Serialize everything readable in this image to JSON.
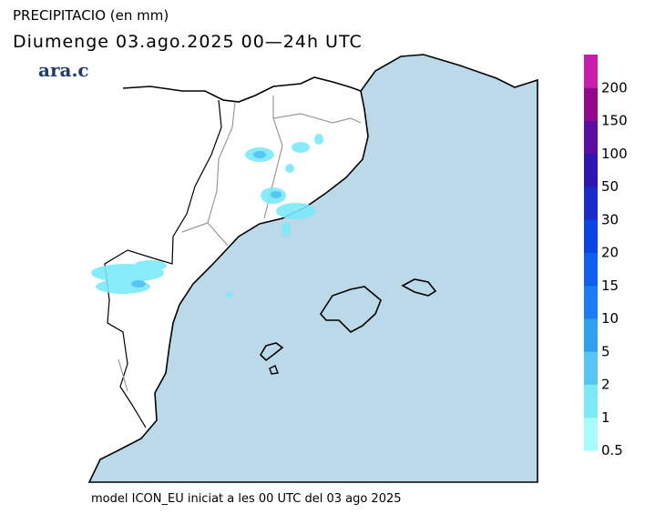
{
  "header": {
    "title": "PRECIPITACIO (en mm)",
    "subtitle": "Diumenge  03.ago.2025  00—24h  UTC",
    "logo": "ara.cat"
  },
  "colorbar": {
    "levels": [
      0.5,
      1,
      2,
      5,
      10,
      15,
      20,
      30,
      50,
      100,
      150,
      200
    ],
    "colors": [
      "#a8fcff",
      "#7ce9f9",
      "#55c6f6",
      "#2ea2f1",
      "#1a7cf0",
      "#0e5ef0",
      "#0a44e2",
      "#1a2cc8",
      "#2c18b0",
      "#5c0ca0",
      "#920a8a",
      "#c81eaa"
    ]
  },
  "footer": "model ICON_EU iniciat a les 00 UTC del 03 ago 2025"
}
